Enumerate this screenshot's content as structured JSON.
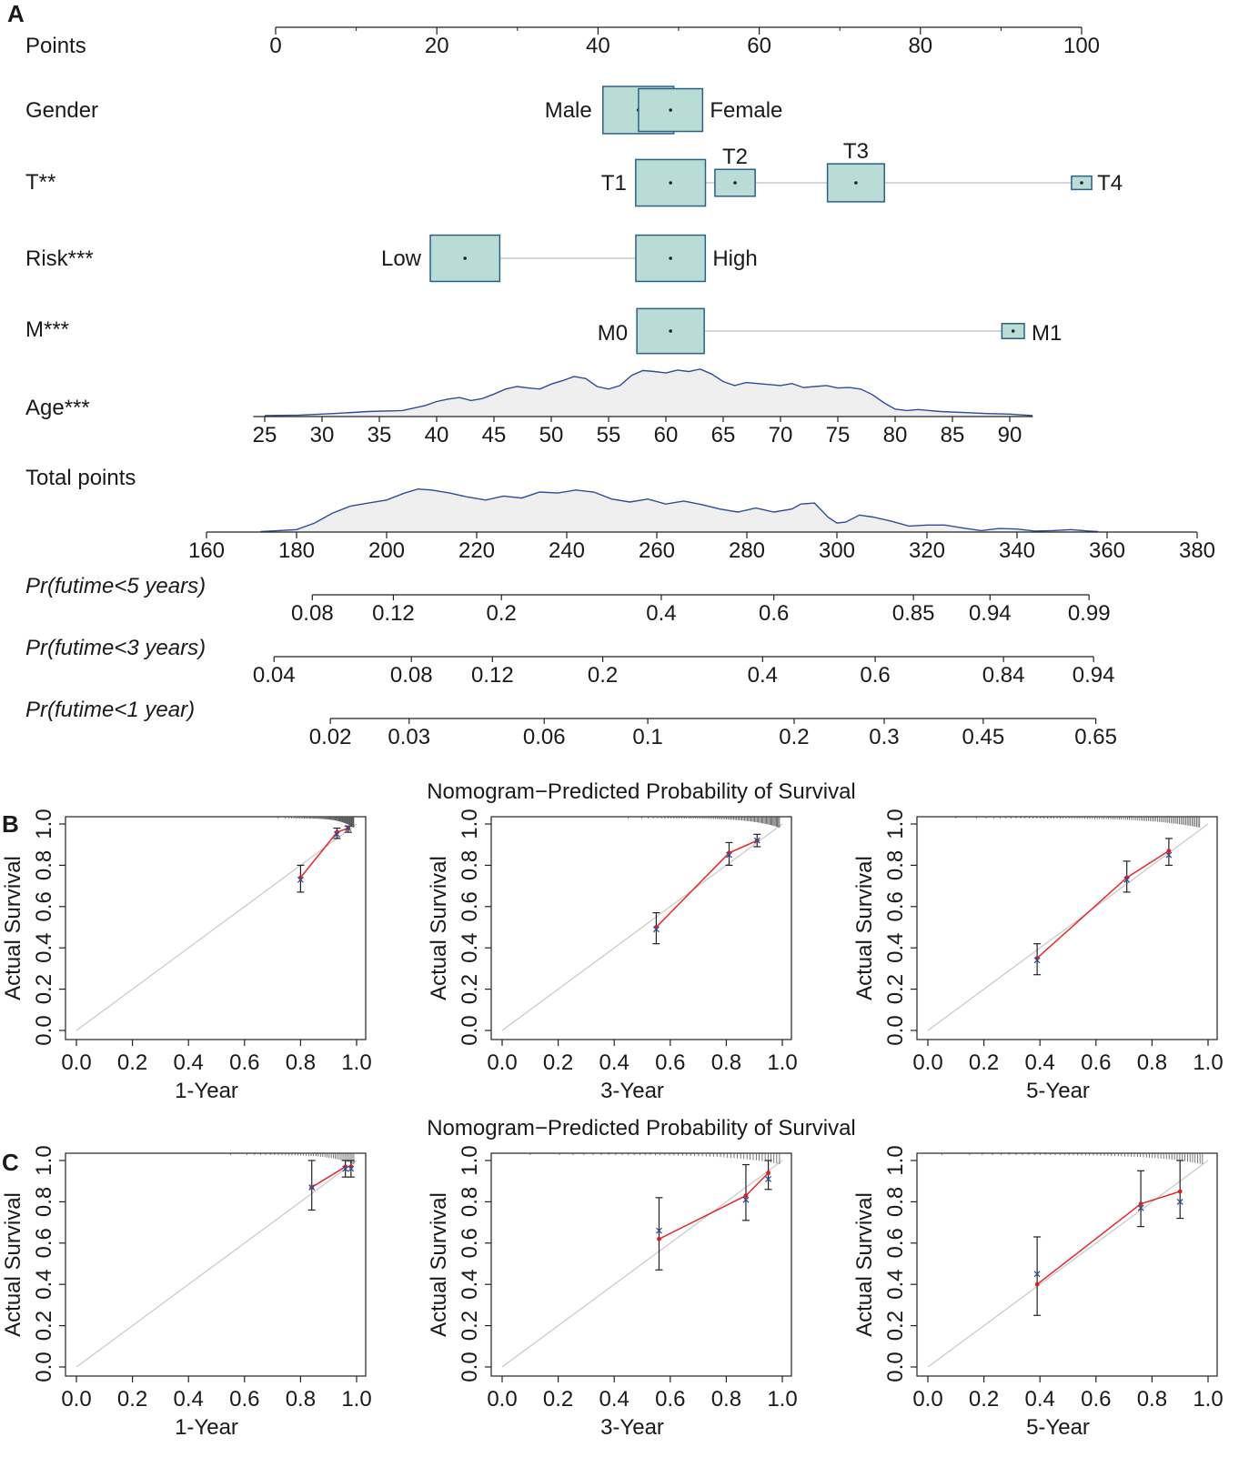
{
  "panels": {
    "a": "A",
    "b": "B",
    "c": "C"
  },
  "colors": {
    "box_fill": "#b9ddd6",
    "box_stroke": "#2c5f8a",
    "density_line": "#2e4d9a",
    "density_fill": "#efefef",
    "fit_line": "#e8262c",
    "ref_line": "#c8c8c8",
    "observed_mark": "#2e4d9a",
    "predicted_mark": "#d4202a"
  },
  "nomogram": {
    "points": {
      "label": "Points",
      "ticks": [
        "0",
        "20",
        "40",
        "60",
        "80",
        "100"
      ],
      "range": [
        0,
        100
      ]
    },
    "gender": {
      "label": "Gender",
      "levels": [
        {
          "name": "Male",
          "points": 45,
          "weight": 0.55
        },
        {
          "name": "Female",
          "points": 49,
          "weight": 0.45
        }
      ]
    },
    "t_stage": {
      "label": "T**",
      "levels": [
        {
          "name": "T1",
          "points": 49,
          "weight": 0.6
        },
        {
          "name": "T2",
          "points": 57,
          "weight": 0.2
        },
        {
          "name": "T3",
          "points": 72,
          "weight": 0.4
        },
        {
          "name": "T4",
          "points": 100,
          "weight": 0.05
        }
      ]
    },
    "risk": {
      "label": "Risk***",
      "levels": [
        {
          "name": "Low",
          "points": 23.5,
          "weight": 0.5
        },
        {
          "name": "High",
          "points": 49,
          "weight": 0.5
        }
      ]
    },
    "m_stage": {
      "label": "M***",
      "levels": [
        {
          "name": "M0",
          "points": 49,
          "weight": 0.9
        },
        {
          "name": "M1",
          "points": 91.5,
          "weight": 0.1
        }
      ]
    },
    "age": {
      "label": "Age***",
      "ticks": [
        "25",
        "30",
        "35",
        "40",
        "45",
        "50",
        "55",
        "60",
        "65",
        "70",
        "75",
        "80",
        "85",
        "90"
      ],
      "density": [
        [
          25,
          0.02
        ],
        [
          28,
          0.03
        ],
        [
          31,
          0.06
        ],
        [
          34,
          0.1
        ],
        [
          37,
          0.12
        ],
        [
          39,
          0.22
        ],
        [
          40,
          0.3
        ],
        [
          41,
          0.35
        ],
        [
          42,
          0.38
        ],
        [
          43,
          0.32
        ],
        [
          44,
          0.36
        ],
        [
          45,
          0.45
        ],
        [
          46,
          0.55
        ],
        [
          47,
          0.6
        ],
        [
          48,
          0.57
        ],
        [
          49,
          0.55
        ],
        [
          50,
          0.65
        ],
        [
          51,
          0.72
        ],
        [
          52,
          0.8
        ],
        [
          53,
          0.76
        ],
        [
          54,
          0.6
        ],
        [
          55,
          0.55
        ],
        [
          56,
          0.62
        ],
        [
          57,
          0.82
        ],
        [
          58,
          0.92
        ],
        [
          59,
          0.9
        ],
        [
          60,
          0.87
        ],
        [
          61,
          0.93
        ],
        [
          62,
          0.9
        ],
        [
          63,
          0.95
        ],
        [
          64,
          0.85
        ],
        [
          65,
          0.7
        ],
        [
          66,
          0.62
        ],
        [
          67,
          0.68
        ],
        [
          68,
          0.66
        ],
        [
          69,
          0.64
        ],
        [
          70,
          0.62
        ],
        [
          71,
          0.66
        ],
        [
          72,
          0.58
        ],
        [
          73,
          0.6
        ],
        [
          74,
          0.62
        ],
        [
          75,
          0.57
        ],
        [
          76,
          0.58
        ],
        [
          77,
          0.55
        ],
        [
          78,
          0.44
        ],
        [
          79,
          0.28
        ],
        [
          80,
          0.15
        ],
        [
          81,
          0.12
        ],
        [
          82,
          0.14
        ],
        [
          84,
          0.1
        ],
        [
          86,
          0.08
        ],
        [
          88,
          0.06
        ],
        [
          90,
          0.05
        ],
        [
          92,
          0.02
        ]
      ]
    },
    "total_points": {
      "label": "Total points",
      "ticks": [
        "160",
        "180",
        "200",
        "220",
        "240",
        "260",
        "280",
        "300",
        "320",
        "340",
        "360",
        "380"
      ],
      "range": [
        160,
        380
      ],
      "density": [
        [
          172,
          0.01
        ],
        [
          176,
          0.03
        ],
        [
          180,
          0.05
        ],
        [
          184,
          0.18
        ],
        [
          188,
          0.38
        ],
        [
          192,
          0.52
        ],
        [
          196,
          0.58
        ],
        [
          200,
          0.64
        ],
        [
          204,
          0.78
        ],
        [
          207,
          0.86
        ],
        [
          210,
          0.84
        ],
        [
          214,
          0.78
        ],
        [
          218,
          0.7
        ],
        [
          222,
          0.64
        ],
        [
          226,
          0.72
        ],
        [
          230,
          0.68
        ],
        [
          234,
          0.8
        ],
        [
          238,
          0.78
        ],
        [
          242,
          0.84
        ],
        [
          246,
          0.8
        ],
        [
          250,
          0.66
        ],
        [
          254,
          0.6
        ],
        [
          258,
          0.66
        ],
        [
          262,
          0.56
        ],
        [
          266,
          0.62
        ],
        [
          270,
          0.55
        ],
        [
          274,
          0.46
        ],
        [
          278,
          0.4
        ],
        [
          282,
          0.48
        ],
        [
          286,
          0.4
        ],
        [
          290,
          0.46
        ],
        [
          292,
          0.56
        ],
        [
          295,
          0.58
        ],
        [
          298,
          0.3
        ],
        [
          300,
          0.18
        ],
        [
          302,
          0.2
        ],
        [
          305,
          0.34
        ],
        [
          308,
          0.3
        ],
        [
          312,
          0.22
        ],
        [
          316,
          0.12
        ],
        [
          320,
          0.14
        ],
        [
          324,
          0.14
        ],
        [
          328,
          0.08
        ],
        [
          332,
          0.03
        ],
        [
          336,
          0.07
        ],
        [
          340,
          0.06
        ],
        [
          344,
          0.02
        ],
        [
          348,
          0.03
        ],
        [
          352,
          0.05
        ],
        [
          356,
          0.02
        ],
        [
          358,
          0.01
        ]
      ]
    },
    "prob_5y": {
      "label": "Pr(futime<5 years)",
      "ticks": [
        {
          "label": "0.08",
          "tp": 183.5
        },
        {
          "label": "0.12",
          "tp": 201.5
        },
        {
          "label": "0.2",
          "tp": 225.5
        },
        {
          "label": "0.4",
          "tp": 261
        },
        {
          "label": "0.6",
          "tp": 286
        },
        {
          "label": "0.85",
          "tp": 317
        },
        {
          "label": "0.94",
          "tp": 334
        },
        {
          "label": "0.99",
          "tp": 356
        }
      ]
    },
    "prob_3y": {
      "label": "Pr(futime<3 years)",
      "ticks": [
        {
          "label": "0.04",
          "tp": 175
        },
        {
          "label": "0.08",
          "tp": 205.5
        },
        {
          "label": "0.12",
          "tp": 223.5
        },
        {
          "label": "0.2",
          "tp": 248
        },
        {
          "label": "0.4",
          "tp": 283.5
        },
        {
          "label": "0.6",
          "tp": 308.5
        },
        {
          "label": "0.84",
          "tp": 337
        },
        {
          "label": "0.94",
          "tp": 357
        }
      ]
    },
    "prob_1y": {
      "label": "Pr(futime<1 year)",
      "ticks": [
        {
          "label": "0.02",
          "tp": 187.5
        },
        {
          "label": "0.03",
          "tp": 205
        },
        {
          "label": "0.06",
          "tp": 235
        },
        {
          "label": "0.1",
          "tp": 258
        },
        {
          "label": "0.2",
          "tp": 290.5
        },
        {
          "label": "0.3",
          "tp": 310.5
        },
        {
          "label": "0.45",
          "tp": 332.5
        },
        {
          "label": "0.65",
          "tp": 357.5
        }
      ]
    }
  },
  "chart_data": [
    {
      "type": "line",
      "panel": "B",
      "title": "Nomogram−Predicted Probability of Survival",
      "ylabel": "Actual Survival",
      "xlim": [
        0,
        1
      ],
      "ylim": [
        0,
        1
      ],
      "ticks": [
        "0.0",
        "0.2",
        "0.4",
        "0.6",
        "0.8",
        "1.0"
      ],
      "plots": [
        {
          "xlabel": "1-Year",
          "series": [
            {
              "x": 0.8,
              "y": 0.74,
              "lo": 0.67,
              "hi": 0.8,
              "obs": 0.73
            },
            {
              "x": 0.93,
              "y": 0.96,
              "lo": 0.93,
              "hi": 0.98,
              "obs": 0.95
            },
            {
              "x": 0.97,
              "y": 0.98,
              "lo": 0.96,
              "hi": 0.99,
              "obs": 0.98
            }
          ],
          "rug": {
            "from": 0.72,
            "to": 0.99,
            "count": 70
          }
        },
        {
          "xlabel": "3-Year",
          "series": [
            {
              "x": 0.55,
              "y": 0.5,
              "lo": 0.42,
              "hi": 0.57,
              "obs": 0.49
            },
            {
              "x": 0.81,
              "y": 0.86,
              "lo": 0.8,
              "hi": 0.91,
              "obs": 0.85
            },
            {
              "x": 0.91,
              "y": 0.92,
              "lo": 0.89,
              "hi": 0.95,
              "obs": 0.92
            }
          ],
          "rug": {
            "from": 0.45,
            "to": 0.99,
            "count": 80
          }
        },
        {
          "xlabel": "5-Year",
          "series": [
            {
              "x": 0.39,
              "y": 0.35,
              "lo": 0.27,
              "hi": 0.42,
              "obs": 0.34
            },
            {
              "x": 0.71,
              "y": 0.74,
              "lo": 0.67,
              "hi": 0.82,
              "obs": 0.73
            },
            {
              "x": 0.86,
              "y": 0.87,
              "lo": 0.8,
              "hi": 0.93,
              "obs": 0.85
            }
          ],
          "rug": {
            "from": 0.1,
            "to": 0.97,
            "count": 90
          }
        }
      ]
    },
    {
      "type": "line",
      "panel": "C",
      "title": "Nomogram−Predicted Probability of Survival",
      "ylabel": "Actual Survival",
      "xlim": [
        0,
        1
      ],
      "ylim": [
        0,
        1
      ],
      "ticks": [
        "0.0",
        "0.2",
        "0.4",
        "0.6",
        "0.8",
        "1.0"
      ],
      "plots": [
        {
          "xlabel": "1-Year",
          "series": [
            {
              "x": 0.84,
              "y": 0.87,
              "lo": 0.76,
              "hi": 1.0,
              "obs": 0.87
            },
            {
              "x": 0.96,
              "y": 0.97,
              "lo": 0.92,
              "hi": 1.0,
              "obs": 0.96
            },
            {
              "x": 0.98,
              "y": 0.97,
              "lo": 0.92,
              "hi": 1.0,
              "obs": 0.96
            }
          ],
          "rug": {
            "from": 0.55,
            "to": 0.99,
            "count": 40
          }
        },
        {
          "xlabel": "3-Year",
          "series": [
            {
              "x": 0.56,
              "y": 0.62,
              "lo": 0.47,
              "hi": 0.82,
              "obs": 0.66
            },
            {
              "x": 0.87,
              "y": 0.83,
              "lo": 0.71,
              "hi": 0.98,
              "obs": 0.81
            },
            {
              "x": 0.95,
              "y": 0.94,
              "lo": 0.86,
              "hi": 1.0,
              "obs": 0.91
            }
          ],
          "rug": {
            "from": 0.1,
            "to": 0.99,
            "count": 50
          }
        },
        {
          "xlabel": "5-Year",
          "series": [
            {
              "x": 0.39,
              "y": 0.4,
              "lo": 0.25,
              "hi": 0.63,
              "obs": 0.45
            },
            {
              "x": 0.76,
              "y": 0.79,
              "lo": 0.68,
              "hi": 0.95,
              "obs": 0.77
            },
            {
              "x": 0.9,
              "y": 0.85,
              "lo": 0.72,
              "hi": 1.0,
              "obs": 0.8
            }
          ],
          "rug": {
            "from": 0.05,
            "to": 0.98,
            "count": 60
          }
        }
      ]
    }
  ]
}
